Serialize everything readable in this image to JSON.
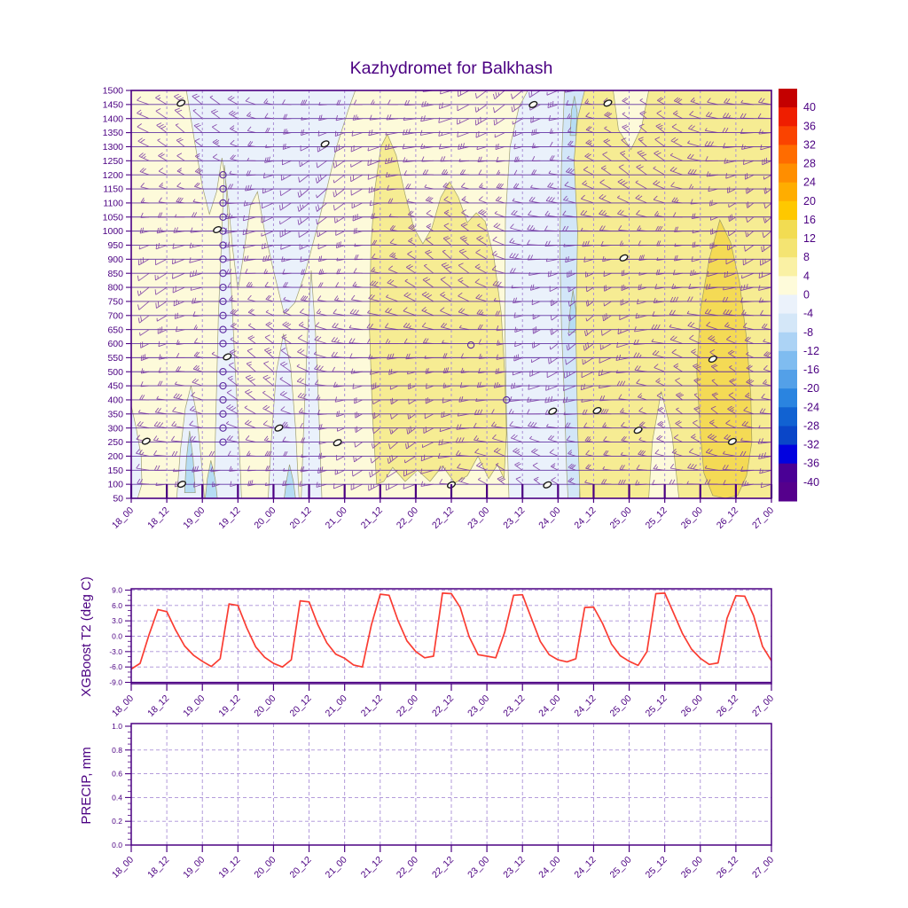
{
  "title": "Kazhydromet for Balkhash",
  "colors": {
    "axis": "#4b0082",
    "grid_solid": "#5b2aa0",
    "grid_dashed": "#a98fd6",
    "barb": "#7b3aa4",
    "contour_line": "#90905e",
    "t2_line": "#fa3c32",
    "fill_0_4": "#fdfada",
    "fill_4_8": "#f6ec93",
    "fill_8_12": "#f4da55",
    "fill_m4_0": "#eaf1fb",
    "fill_m8_m4": "#d2e6f8",
    "fill_m12_m8": "#b6dcf4"
  },
  "x_tick_labels": [
    "18_00",
    "18_12",
    "19_00",
    "19_12",
    "20_00",
    "20_12",
    "21_00",
    "21_12",
    "22_00",
    "22_12",
    "23_00",
    "23_12",
    "24_00",
    "24_12",
    "25_00",
    "25_12",
    "26_00",
    "26_12",
    "27_00"
  ],
  "chart_data": [
    {
      "id": "upper",
      "type": "contour",
      "title": "Kazhydromet for Balkhash",
      "ylabel": "",
      "y_tick_labels": [
        1500,
        1450,
        1400,
        1350,
        1300,
        1250,
        1200,
        1150,
        1100,
        1050,
        1000,
        950,
        900,
        850,
        800,
        750,
        700,
        650,
        600,
        550,
        500,
        450,
        400,
        350,
        300,
        250,
        200,
        150,
        100,
        50
      ],
      "ylim": [
        50,
        1500
      ],
      "x_span_half_days": 18,
      "wind_barbs": {
        "x_step_hours": 6,
        "level_step_m": 50,
        "color": "#7b3aa4",
        "note": "purple wind barbs at every 50 m level, ~6-hourly"
      },
      "colorbar": {
        "tick_labels": [
          40,
          36,
          32,
          28,
          24,
          20,
          16,
          12,
          8,
          4,
          0,
          -4,
          -8,
          -12,
          -16,
          -20,
          -24,
          -28,
          -32,
          -36,
          -40
        ],
        "segment_colors": [
          "#c40000",
          "#ef1e00",
          "#fa4300",
          "#ff6c00",
          "#ff8e00",
          "#ffad00",
          "#fec800",
          "#f2dc52",
          "#f4e472",
          "#faf1a4",
          "#fefbda",
          "#ebf2fb",
          "#d4e7f8",
          "#acd3f5",
          "#7fbcf0",
          "#53a0e8",
          "#2a84e0",
          "#1162d2",
          "#0a46c8",
          "#0202df",
          "#4a0095",
          "#55008c"
        ]
      },
      "fill_regions": [
        {
          "band": "-4..0",
          "color": "fill_m4_0",
          "pts": [
            [
              1.55,
              1500
            ],
            [
              1.78,
              1320
            ],
            [
              2.0,
              1160
            ],
            [
              2.2,
              1060
            ],
            [
              2.4,
              1140
            ],
            [
              2.55,
              1260
            ],
            [
              2.7,
              1140
            ],
            [
              2.85,
              940
            ],
            [
              3.0,
              790
            ],
            [
              3.15,
              910
            ],
            [
              3.35,
              1090
            ],
            [
              3.55,
              1140
            ],
            [
              3.75,
              1000
            ],
            [
              4.0,
              860
            ],
            [
              4.3,
              705
            ],
            [
              4.6,
              745
            ],
            [
              4.9,
              855
            ],
            [
              5.2,
              1000
            ],
            [
              5.5,
              1150
            ],
            [
              5.8,
              1310
            ],
            [
              6.1,
              1430
            ],
            [
              6.3,
              1500
            ]
          ]
        },
        {
          "band": "-4..0",
          "color": "fill_m4_0",
          "pts": [
            [
              2.32,
              50
            ],
            [
              2.38,
              350
            ],
            [
              2.45,
              700
            ],
            [
              2.55,
              1000
            ],
            [
              2.62,
              1235
            ],
            [
              2.72,
              1050
            ],
            [
              2.82,
              780
            ],
            [
              2.92,
              520
            ],
            [
              3.02,
              280
            ],
            [
              3.08,
              120
            ],
            [
              3.1,
              50
            ]
          ]
        },
        {
          "band": "-4..0",
          "color": "fill_m4_0",
          "pts": [
            [
              3.85,
              50
            ],
            [
              3.95,
              280
            ],
            [
              4.08,
              500
            ],
            [
              4.28,
              635
            ],
            [
              4.48,
              520
            ],
            [
              4.62,
              300
            ],
            [
              4.72,
              50
            ]
          ]
        },
        {
          "band": "-4..0",
          "color": "fill_m4_0",
          "pts": [
            [
              4.78,
              50
            ],
            [
              4.86,
              340
            ],
            [
              4.96,
              640
            ],
            [
              5.06,
              860
            ],
            [
              5.18,
              640
            ],
            [
              5.28,
              340
            ],
            [
              5.36,
              50
            ]
          ]
        },
        {
          "band": "-4..0",
          "color": "fill_m4_0",
          "pts": [
            [
              10.62,
              50
            ],
            [
              10.55,
              350
            ],
            [
              10.5,
              700
            ],
            [
              10.52,
              1050
            ],
            [
              10.65,
              1300
            ],
            [
              10.9,
              1440
            ],
            [
              11.15,
              1500
            ],
            [
              13.1,
              1500
            ],
            [
              13.3,
              1250
            ],
            [
              13.42,
              1000
            ],
            [
              13.55,
              800
            ],
            [
              13.62,
              500
            ],
            [
              13.5,
              200
            ],
            [
              13.42,
              50
            ]
          ]
        },
        {
          "band": "-4..0",
          "color": "fill_m4_0",
          "pts": [
            [
              0,
              380
            ],
            [
              0.14,
              300
            ],
            [
              0.28,
              200
            ],
            [
              0.3,
              100
            ],
            [
              0.18,
              50
            ],
            [
              0,
              50
            ]
          ]
        },
        {
          "band": "-4..0",
          "color": "fill_m4_0",
          "pts": [
            [
              1.28,
              50
            ],
            [
              1.38,
              220
            ],
            [
              1.52,
              370
            ],
            [
              1.68,
              450
            ],
            [
              1.84,
              350
            ],
            [
              1.96,
              200
            ],
            [
              2.06,
              50
            ]
          ]
        },
        {
          "band": "-8..-4",
          "color": "fill_m8_m4",
          "pts": [
            [
              12.18,
              1500
            ],
            [
              12.1,
              1250
            ],
            [
              12.05,
              950
            ],
            [
              12.1,
              650
            ],
            [
              12.18,
              400
            ],
            [
              12.24,
              150
            ],
            [
              12.28,
              50
            ],
            [
              12.6,
              50
            ],
            [
              12.68,
              350
            ],
            [
              12.72,
              700
            ],
            [
              12.78,
              1050
            ],
            [
              12.85,
              1300
            ],
            [
              12.88,
              1500
            ]
          ]
        },
        {
          "band": "-12..-8",
          "color": "fill_m12_m8",
          "pts": [
            [
              1.5,
              70
            ],
            [
              1.55,
              190
            ],
            [
              1.64,
              290
            ],
            [
              1.74,
              190
            ],
            [
              1.8,
              70
            ]
          ]
        },
        {
          "band": "-12..-8",
          "color": "fill_m12_m8",
          "pts": [
            [
              2.08,
              50
            ],
            [
              2.14,
              120
            ],
            [
              2.24,
              185
            ],
            [
              2.36,
              120
            ],
            [
              2.42,
              50
            ]
          ]
        },
        {
          "band": "-12..-8",
          "color": "fill_m12_m8",
          "pts": [
            [
              4.3,
              50
            ],
            [
              4.36,
              110
            ],
            [
              4.45,
              170
            ],
            [
              4.56,
              110
            ],
            [
              4.62,
              50
            ]
          ]
        },
        {
          "band": "-12..-8",
          "color": "fill_m12_m8",
          "pts": [
            [
              12.3,
              640
            ],
            [
              12.34,
              720
            ],
            [
              12.42,
              790
            ],
            [
              12.5,
              720
            ],
            [
              12.52,
              640
            ]
          ]
        },
        {
          "band": "-12..-8",
          "color": "fill_m12_m8",
          "pts": [
            [
              12.34,
              1340
            ],
            [
              12.38,
              1430
            ],
            [
              12.46,
              1480
            ],
            [
              12.54,
              1420
            ],
            [
              12.5,
              1340
            ]
          ]
        },
        {
          "band": "4..8",
          "color": "fill_4_8",
          "pts": [
            [
              6.9,
              100
            ],
            [
              6.78,
              350
            ],
            [
              6.7,
              650
            ],
            [
              6.74,
              950
            ],
            [
              6.85,
              1150
            ],
            [
              7.02,
              1300
            ],
            [
              7.2,
              1345
            ],
            [
              7.45,
              1270
            ],
            [
              7.7,
              1130
            ],
            [
              7.95,
              1010
            ],
            [
              8.2,
              955
            ],
            [
              8.45,
              1010
            ],
            [
              8.7,
              1120
            ],
            [
              8.95,
              1175
            ],
            [
              9.2,
              1120
            ],
            [
              9.45,
              1030
            ],
            [
              9.7,
              1065
            ],
            [
              9.95,
              1035
            ],
            [
              10.2,
              905
            ],
            [
              10.4,
              710
            ],
            [
              10.5,
              490
            ],
            [
              10.55,
              280
            ],
            [
              10.48,
              120
            ],
            [
              10.3,
              170
            ],
            [
              10.05,
              120
            ],
            [
              9.75,
              200
            ],
            [
              9.45,
              130
            ],
            [
              9.1,
              105
            ],
            [
              8.75,
              165
            ],
            [
              8.4,
              110
            ],
            [
              8.05,
              150
            ],
            [
              7.7,
              110
            ],
            [
              7.35,
              160
            ],
            [
              7.1,
              110
            ]
          ]
        },
        {
          "band": "4..8",
          "color": "fill_4_8",
          "pts": [
            [
              12.62,
              50
            ],
            [
              12.55,
              300
            ],
            [
              12.5,
              650
            ],
            [
              12.55,
              1000
            ],
            [
              12.45,
              1250
            ],
            [
              12.55,
              1400
            ],
            [
              12.75,
              1500
            ],
            [
              13.55,
              1500
            ],
            [
              13.7,
              1360
            ],
            [
              14.05,
              1290
            ],
            [
              14.35,
              1370
            ],
            [
              14.55,
              1500
            ],
            [
              18,
              1500
            ],
            [
              18,
              50
            ],
            [
              15.4,
              50
            ],
            [
              15.2,
              280
            ],
            [
              14.9,
              430
            ],
            [
              14.65,
              250
            ],
            [
              14.55,
              50
            ]
          ]
        },
        {
          "band": "8..12",
          "color": "fill_8_12",
          "pts": [
            [
              16.0,
              280
            ],
            [
              15.9,
              500
            ],
            [
              16.0,
              720
            ],
            [
              16.25,
              900
            ],
            [
              16.55,
              1040
            ],
            [
              16.85,
              960
            ],
            [
              17.1,
              820
            ],
            [
              17.3,
              620
            ],
            [
              17.42,
              420
            ],
            [
              17.45,
              250
            ],
            [
              17.3,
              130
            ],
            [
              17.05,
              60
            ],
            [
              16.7,
              50
            ],
            [
              16.35,
              60
            ],
            [
              16.1,
              140
            ]
          ]
        }
      ],
      "calm_circles_x": 2.58,
      "calm_circles_levels": [
        1200,
        1150,
        1100,
        1050,
        1000,
        950,
        900,
        850,
        800,
        750,
        700,
        650,
        600,
        500,
        450,
        400,
        350,
        300,
        250
      ],
      "calm_circles_extra": [
        [
          9.55,
          595
        ],
        [
          10.55,
          400
        ]
      ],
      "zero_contour_labels": [
        [
          1.4,
          1455
        ],
        [
          5.45,
          1310
        ],
        [
          11.3,
          1450
        ],
        [
          13.4,
          1455
        ],
        [
          2.42,
          1005
        ],
        [
          13.85,
          905
        ],
        [
          16.35,
          545
        ],
        [
          2.7,
          553
        ],
        [
          0.42,
          253
        ],
        [
          4.15,
          300
        ],
        [
          5.8,
          248
        ],
        [
          9.0,
          98
        ],
        [
          11.7,
          98
        ],
        [
          13.1,
          362
        ],
        [
          11.85,
          360
        ],
        [
          14.25,
          292
        ],
        [
          16.9,
          252
        ],
        [
          1.42,
          100
        ]
      ]
    },
    {
      "id": "t2",
      "type": "line",
      "ylabel": "XGBoost T2 (deg C)",
      "y_tick_labels": [
        "9.0",
        "6.0",
        "3.0",
        "0.0",
        "-3.0",
        "-6.0",
        "-9.0"
      ],
      "y_ticks": [
        9,
        6,
        3,
        0,
        -3,
        -6,
        -9
      ],
      "ylim": [
        -9,
        9
      ],
      "x_hours_step": 3,
      "line_color": "#fa3c32",
      "values": [
        -6.4,
        -5.3,
        0.3,
        5.2,
        4.8,
        1.2,
        -1.9,
        -3.7,
        -4.9,
        -5.9,
        -4.4,
        6.3,
        6.0,
        1.6,
        -2.1,
        -4.1,
        -5.3,
        -6.0,
        -4.6,
        6.9,
        6.7,
        2.2,
        -1.3,
        -3.5,
        -4.3,
        -5.6,
        -6.0,
        2.2,
        8.2,
        8.0,
        3.1,
        -0.9,
        -3.0,
        -4.2,
        -3.9,
        8.4,
        8.3,
        5.6,
        -0.1,
        -3.6,
        -3.9,
        -4.2,
        0.8,
        8.0,
        8.1,
        3.5,
        -1.0,
        -3.6,
        -4.6,
        -5.0,
        -4.4,
        5.6,
        5.7,
        2.5,
        -1.5,
        -3.8,
        -4.9,
        -5.7,
        -3.0,
        8.3,
        8.4,
        4.5,
        0.5,
        -2.5,
        -4.3,
        -5.5,
        -5.2,
        3.5,
        7.9,
        7.8,
        4.0,
        -2.0,
        -4.8
      ]
    },
    {
      "id": "precip",
      "type": "line",
      "ylabel": "PRECIP, mm",
      "y_tick_labels": [
        "1.0",
        "0.8",
        "0.6",
        "0.4",
        "0.2",
        "0.0"
      ],
      "y_ticks": [
        1.0,
        0.8,
        0.6,
        0.4,
        0.2,
        0.0
      ],
      "ylim": [
        0,
        1
      ],
      "x_hours_step": 3,
      "n_points": 73,
      "constant_value": 0.0
    }
  ]
}
